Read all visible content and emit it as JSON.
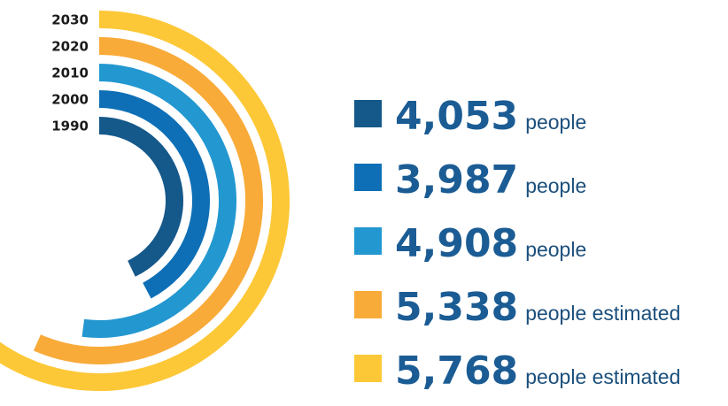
{
  "chart_data": {
    "type": "radial-bar",
    "series": [
      {
        "year": "1990",
        "value": 4053,
        "value_label": "4,053",
        "unit_label": "people",
        "color": "#15588a"
      },
      {
        "year": "2000",
        "value": 3987,
        "value_label": "3,987",
        "unit_label": "people",
        "color": "#0e6fb6"
      },
      {
        "year": "2010",
        "value": 4908,
        "value_label": "4,908",
        "unit_label": "people",
        "color": "#2397d0"
      },
      {
        "year": "2020",
        "value": 5338,
        "value_label": "5,338",
        "unit_label": "people estimated",
        "color": "#f8ab39"
      },
      {
        "year": "2030",
        "value": 5768,
        "value_label": "5,768",
        "unit_label": "people estimated",
        "color": "#fdc837"
      }
    ],
    "value_text_color": "#1b5c94",
    "legend_placement": "right"
  }
}
